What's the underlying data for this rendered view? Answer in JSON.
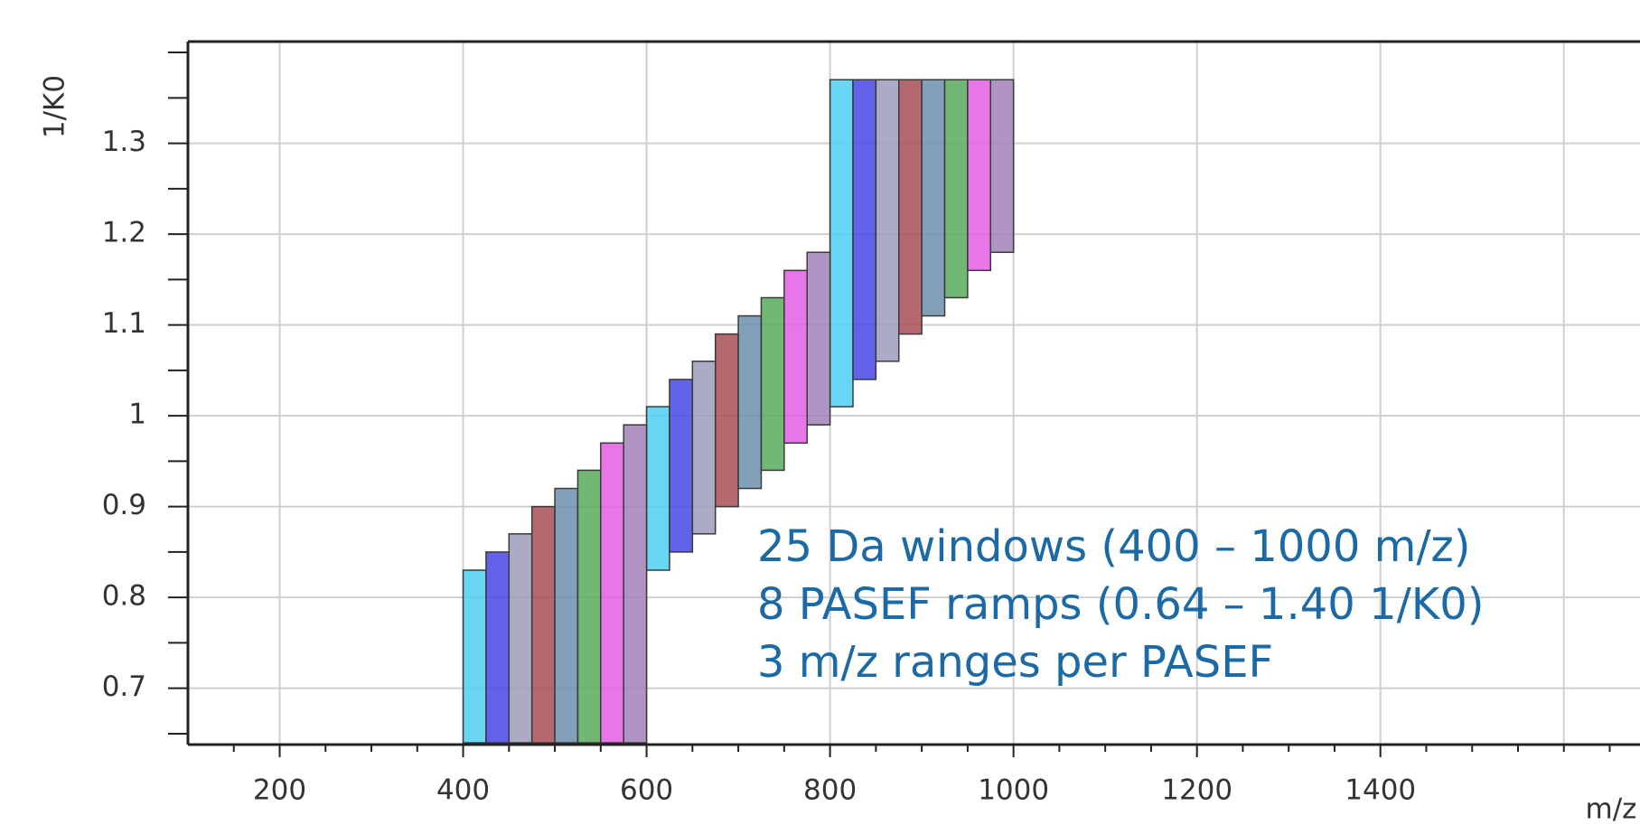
{
  "chart_data": {
    "type": "window-rect",
    "x_label": "m/z",
    "y_label": "1/K0",
    "annotation": [
      "25 Da windows (400 – 1000 m/z)",
      "8 PASEF ramps (0.64 – 1.40 1/K0)",
      "3 m/z ranges per PASEF"
    ],
    "annotation_color": "#1b6aa5",
    "xlim": [
      100,
      1683
    ],
    "ylim": [
      0.638,
      1.412
    ],
    "xticks": [
      200,
      400,
      600,
      800,
      1000,
      1200,
      1400
    ],
    "xgrid": [
      200,
      400,
      600,
      800,
      1000,
      1200,
      1400,
      1600
    ],
    "xminor": [
      150,
      250,
      300,
      350,
      450,
      500,
      550,
      650,
      700,
      750,
      850,
      900,
      950,
      1050,
      1100,
      1150,
      1250,
      1300,
      1350,
      1450,
      1500,
      1550,
      1600,
      1650
    ],
    "yticks": [
      0.7,
      0.8,
      0.9,
      1,
      1.1,
      1.2,
      1.3
    ],
    "yminor": [
      0.65,
      0.75,
      0.85,
      0.95,
      1.05,
      1.15,
      1.25,
      1.35,
      1.4
    ],
    "grid": true,
    "series": [
      {
        "color": "#4fd0f2",
        "x_start": [
          400,
          600,
          800
        ],
        "x_end": [
          425,
          625,
          825
        ],
        "y_low": [
          0.64,
          0.83,
          1.01
        ],
        "y_high": [
          0.83,
          1.01,
          1.37
        ]
      },
      {
        "color": "#4747e6",
        "x_start": [
          425,
          625,
          825
        ],
        "x_end": [
          450,
          650,
          850
        ],
        "y_low": [
          0.64,
          0.85,
          1.04
        ],
        "y_high": [
          0.85,
          1.04,
          1.37
        ]
      },
      {
        "color": "#9c9cbc",
        "x_start": [
          450,
          650,
          850
        ],
        "x_end": [
          475,
          675,
          875
        ],
        "y_low": [
          0.64,
          0.87,
          1.06
        ],
        "y_high": [
          0.87,
          1.06,
          1.37
        ]
      },
      {
        "color": "#a84f55",
        "x_start": [
          475,
          675,
          875
        ],
        "x_end": [
          500,
          700,
          900
        ],
        "y_low": [
          0.64,
          0.9,
          1.09
        ],
        "y_high": [
          0.9,
          1.09,
          1.37
        ]
      },
      {
        "color": "#6d8fae",
        "x_start": [
          500,
          700,
          900
        ],
        "x_end": [
          525,
          725,
          925
        ],
        "y_low": [
          0.64,
          0.92,
          1.11
        ],
        "y_high": [
          0.92,
          1.11,
          1.37
        ]
      },
      {
        "color": "#58ab5c",
        "x_start": [
          525,
          725,
          925
        ],
        "x_end": [
          550,
          750,
          950
        ],
        "y_low": [
          0.64,
          0.94,
          1.13
        ],
        "y_high": [
          0.94,
          1.13,
          1.37
        ]
      },
      {
        "color": "#e45ee4",
        "x_start": [
          550,
          750,
          950
        ],
        "x_end": [
          575,
          775,
          975
        ],
        "y_low": [
          0.64,
          0.97,
          1.16
        ],
        "y_high": [
          0.97,
          1.16,
          1.37
        ]
      },
      {
        "color": "#a282ba",
        "x_start": [
          575,
          775,
          975
        ],
        "x_end": [
          600,
          800,
          1000
        ],
        "y_low": [
          0.64,
          0.99,
          1.18
        ],
        "y_high": [
          0.99,
          1.18,
          1.37
        ]
      }
    ]
  }
}
